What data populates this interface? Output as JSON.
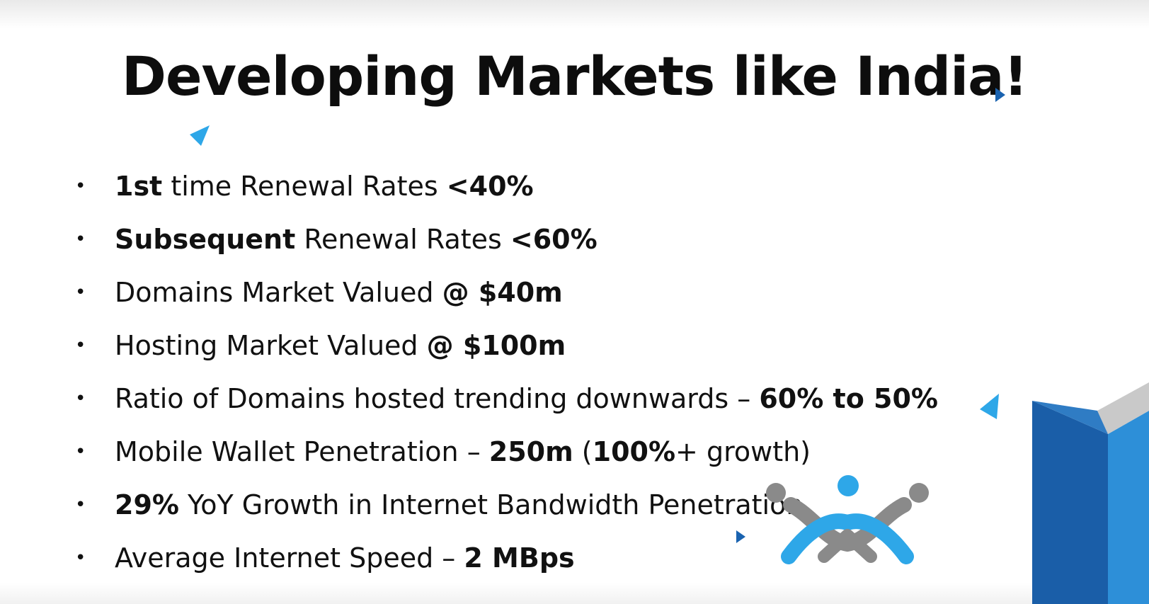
{
  "slide": {
    "title": "Developing Markets like India!",
    "bullets": [
      {
        "segments": [
          {
            "text": "1st",
            "bold": true
          },
          {
            "text": " time Renewal Rates ",
            "bold": false
          },
          {
            "text": "<40%",
            "bold": true
          }
        ]
      },
      {
        "segments": [
          {
            "text": "Subsequent",
            "bold": true
          },
          {
            "text": " Renewal Rates ",
            "bold": false
          },
          {
            "text": "<60%",
            "bold": true
          }
        ]
      },
      {
        "segments": [
          {
            "text": "Domains Market Valued ",
            "bold": false
          },
          {
            "text": "@ $40m",
            "bold": true
          }
        ]
      },
      {
        "segments": [
          {
            "text": "Hosting Market Valued ",
            "bold": false
          },
          {
            "text": "@ $100m",
            "bold": true
          }
        ]
      },
      {
        "segments": [
          {
            "text": "Ratio of Domains hosted trending downwards – ",
            "bold": false
          },
          {
            "text": "60% to 50%",
            "bold": true
          }
        ]
      },
      {
        "segments": [
          {
            "text": "Mobile Wallet Penetration – ",
            "bold": false
          },
          {
            "text": "250m",
            "bold": true
          },
          {
            "text": " (",
            "bold": false
          },
          {
            "text": "100%",
            "bold": true
          },
          {
            "text": "+ growth)",
            "bold": false
          }
        ]
      },
      {
        "segments": [
          {
            "text": "29%",
            "bold": true
          },
          {
            "text": " YoY Growth in Internet Bandwidth Penetration",
            "bold": false
          }
        ]
      },
      {
        "segments": [
          {
            "text": "Average Internet Speed – ",
            "bold": false
          },
          {
            "text": "2 MBps",
            "bold": true
          }
        ]
      }
    ],
    "bullet_glyph": "•"
  },
  "decorations": {
    "logo_icon": "brand-logo-icon",
    "accent_colors": {
      "light_blue": "#2ea7e8",
      "dark_blue": "#1a63b0",
      "gray": "#8a8a8a"
    }
  }
}
